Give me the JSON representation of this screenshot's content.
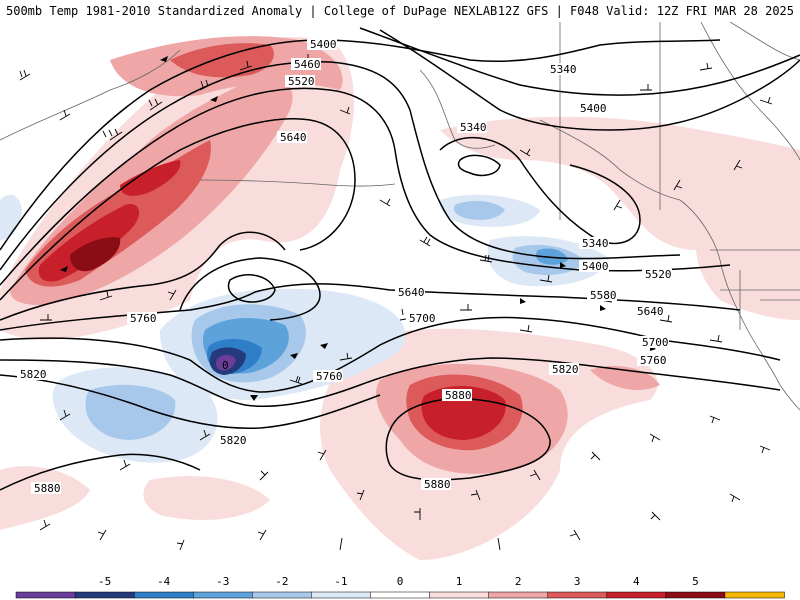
{
  "header": {
    "left": "500mb Temp 1981-2010 Standardized Anomaly | College of DuPage NEXLAB",
    "right": "12Z GFS | F048 Valid: 12Z FRI MAR 28 2025"
  },
  "contour_labels": [
    "5400",
    "5460",
    "5520",
    "5640",
    "5340",
    "5400",
    "5340",
    "5340",
    "5400",
    "5520",
    "5580",
    "5640",
    "5640",
    "5700",
    "5700",
    "5760",
    "5760",
    "5760",
    "5820",
    "5820",
    "5820",
    "5880",
    "5880",
    "5880",
    "0"
  ],
  "colorbar": {
    "ticks": [
      "-5",
      "-4",
      "-3",
      "-2",
      "-1",
      "0",
      "1",
      "2",
      "3",
      "4",
      "5"
    ],
    "colors": [
      "#6a3d9a",
      "#253a7a",
      "#2f7fc8",
      "#5ea2dc",
      "#a7c8ea",
      "#dce8f5",
      "#ffffff",
      "#f9dcdc",
      "#eea6a6",
      "#dc5a5a",
      "#c8202a",
      "#8a0c14",
      "#f5b800"
    ]
  },
  "colors": {
    "neg5": "#6a3d9a",
    "neg4": "#253a7a",
    "neg3": "#2f7fc8",
    "neg2": "#5ea2dc",
    "neg1": "#a7c8ea",
    "neg0": "#dce8f5",
    "pos0": "#f9dcdc",
    "pos1": "#eea6a6",
    "pos2": "#dc5a5a",
    "pos3": "#c8202a",
    "pos4": "#8a0c14"
  }
}
